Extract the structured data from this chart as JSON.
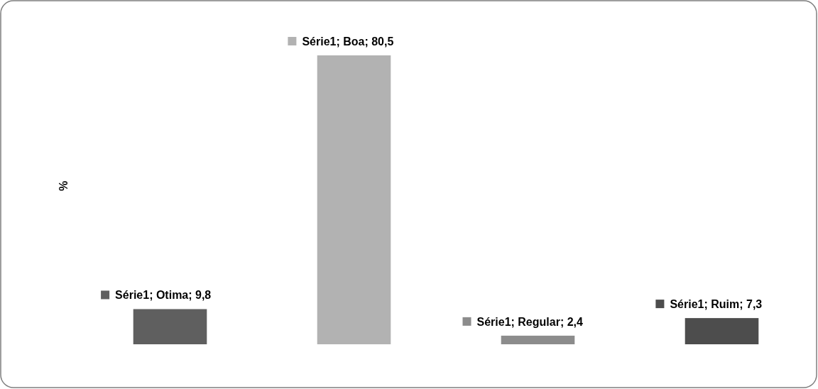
{
  "chart_data": {
    "type": "bar",
    "ylabel": "%",
    "categories": [
      null,
      null,
      null,
      null
    ],
    "series": [
      {
        "colors": [
          "#5f5f5f",
          "#b2b2b2",
          "#8c8c8c",
          "#4d4d4d"
        ],
        "values": [
          9.8,
          80.5,
          2.4,
          7.3
        ],
        "value_labels": [
          "Série1; Otima; 9,8",
          "Série1; Boa; 80,5",
          "Série1; Regular; 2,4",
          "Série1; Ruim; 7,3"
        ]
      }
    ]
  }
}
